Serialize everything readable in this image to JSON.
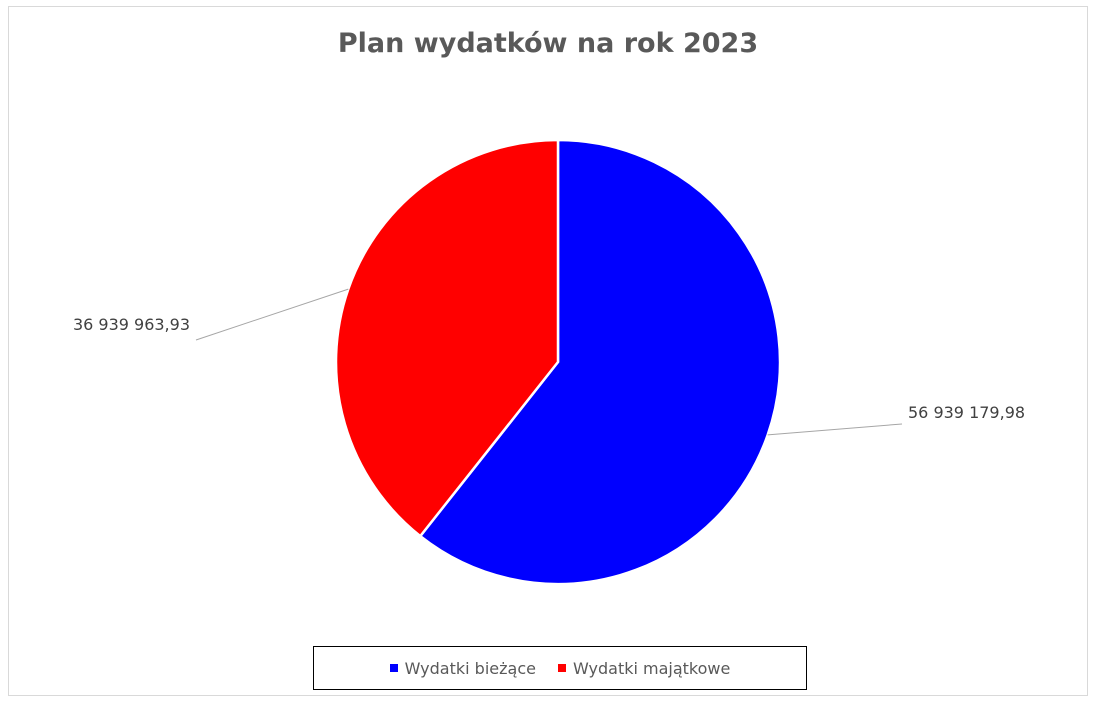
{
  "chart_data": {
    "type": "pie",
    "title": "Plan wydatków na rok 2023",
    "slices": [
      {
        "name": "Wydatki bieżące",
        "value": 56939179.98,
        "label": "56 939 179,98",
        "color": "#0000ff"
      },
      {
        "name": "Wydatki majątkowe",
        "value": 36939963.93,
        "label": "36 939 963,93",
        "color": "#ff0000"
      }
    ],
    "legend": {
      "placement": "bottom",
      "entries": [
        "Wydatki bieżące",
        "Wydatki majątkowe"
      ]
    }
  }
}
